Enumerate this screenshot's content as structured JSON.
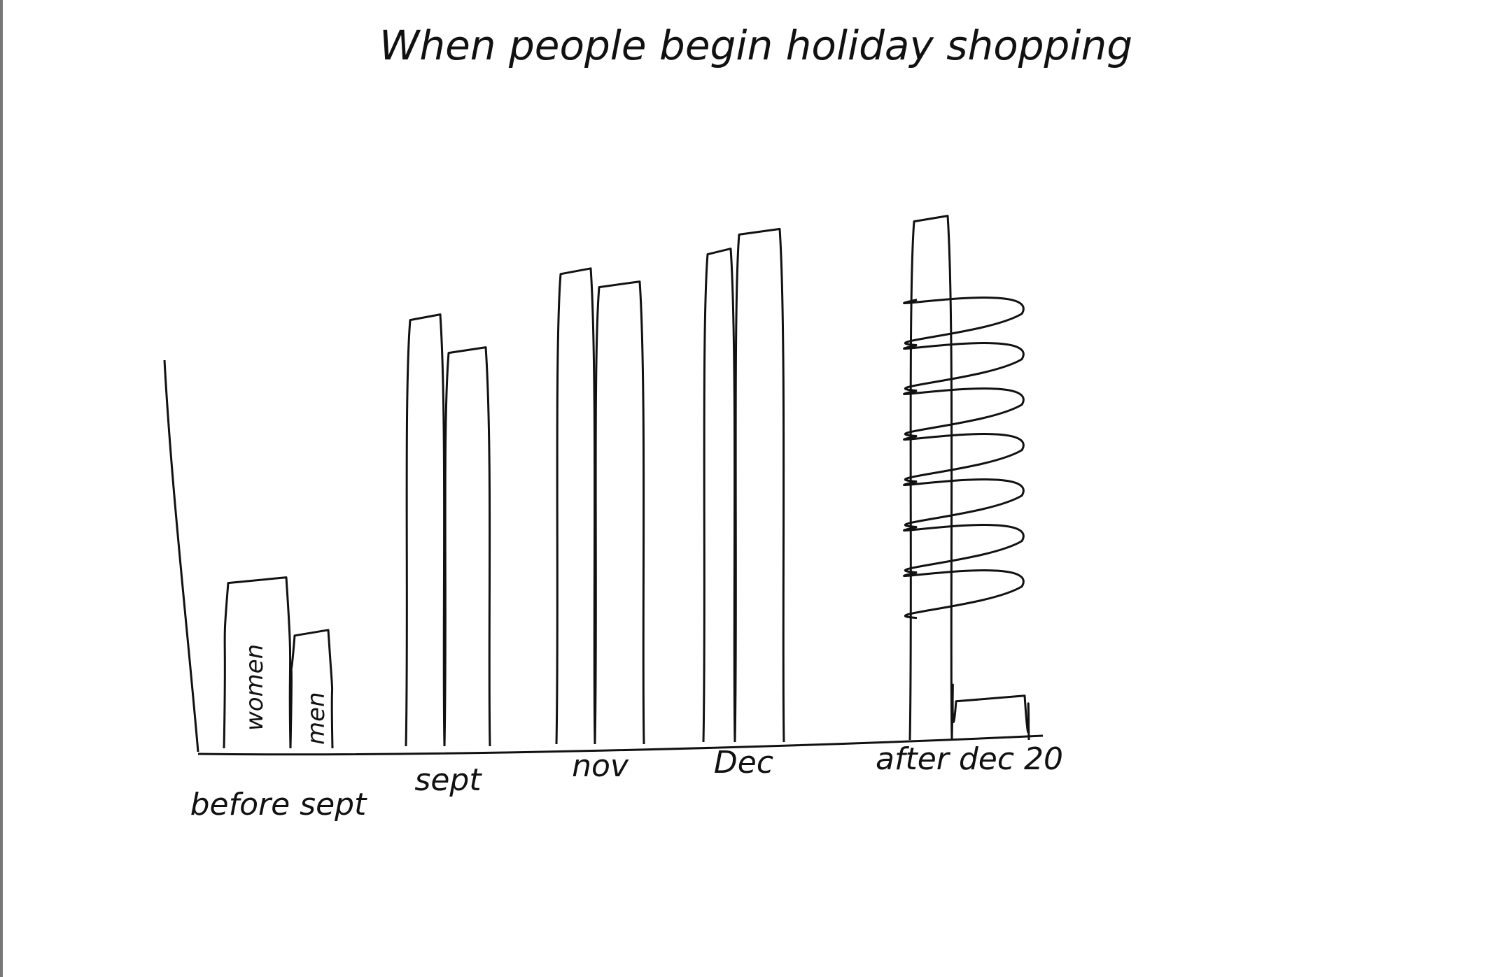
{
  "chart_data": {
    "type": "bar",
    "title": "When people begin holiday shopping",
    "xlabel": "",
    "ylabel": "",
    "categories": [
      "before sept",
      "sept",
      "nov",
      "Dec",
      "after dec 20"
    ],
    "series": [
      {
        "name": "women",
        "values": [
          26,
          66,
          73,
          76,
          81
        ]
      },
      {
        "name": "men",
        "values": [
          18,
          61,
          71,
          79,
          8
        ]
      }
    ],
    "ylim": [
      0,
      100
    ],
    "grid": false,
    "legend": "none",
    "colors": {
      "ink": "#111111",
      "paper": "#ffffff"
    }
  }
}
